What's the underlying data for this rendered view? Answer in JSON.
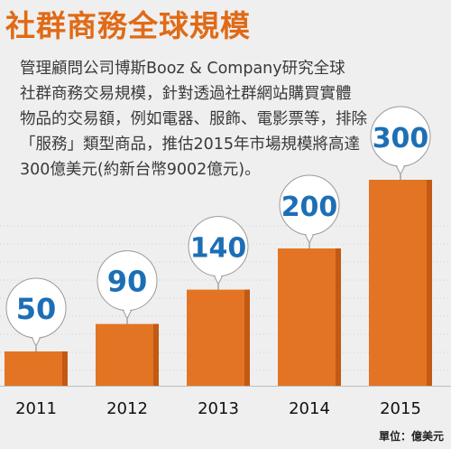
{
  "header": {
    "title": "社群商務全球規模"
  },
  "description": [
    "管理顧問公司博斯Booz & Company研究全球",
    "社群商務交易規模，針對透過社群網站購買實體",
    "物品的交易額，例如電器、服飾、電影票等，排除",
    "「服務」類型商品，推估2015年市場規模將高達",
    "300億美元(約新台幣9002億元)。"
  ],
  "unit_label": "單位：億美元",
  "colors": {
    "title": "#e06a16",
    "bar": "#e37424",
    "bar_dark": "#c25a14",
    "label": "#1d6fb5"
  },
  "chart_data": {
    "type": "bar",
    "categories": [
      "2011",
      "2012",
      "2013",
      "2014",
      "2015"
    ],
    "values": [
      50,
      90,
      140,
      200,
      300
    ],
    "data_labels": [
      "50",
      "90",
      "140",
      "200",
      "300"
    ],
    "ylim": [
      0,
      300
    ],
    "grid": false
  }
}
